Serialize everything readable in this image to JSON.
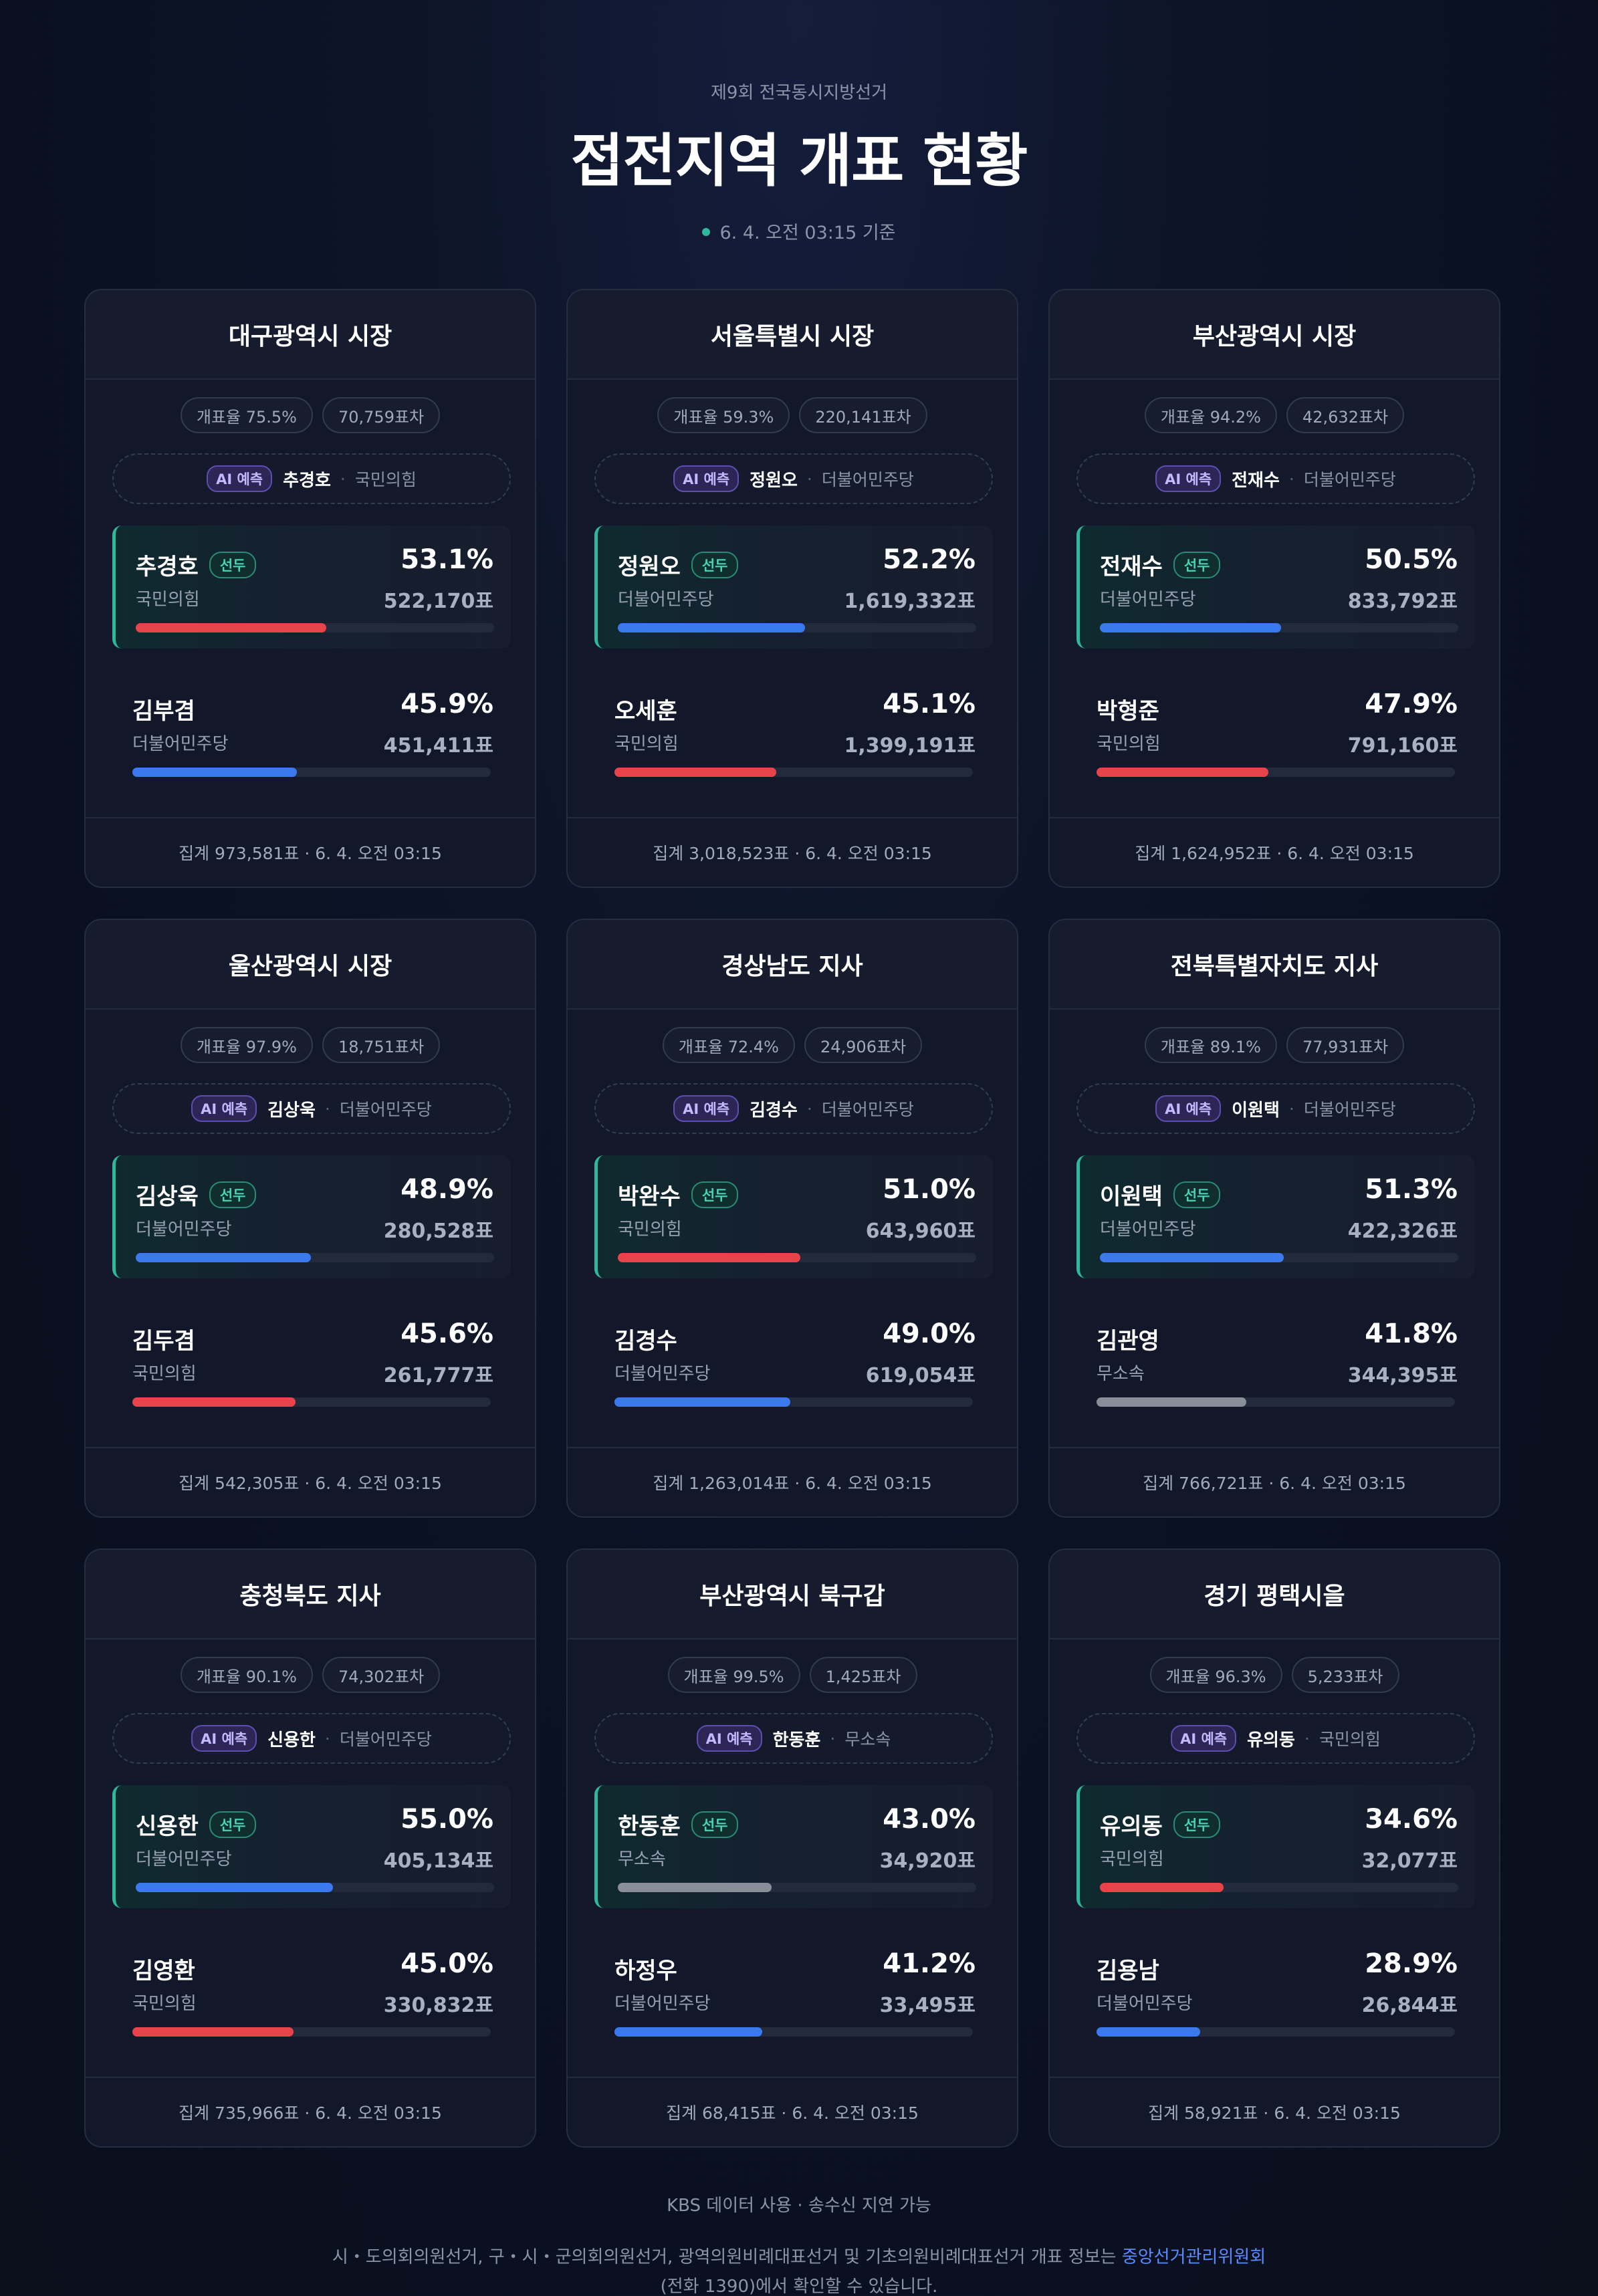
{
  "header": {
    "subtitle": "제9회 전국동시지방선거",
    "title": "접전지역 개표 현황",
    "timestamp": "6. 4. 오전 03:15 기준"
  },
  "labels": {
    "ai": "AI 예측",
    "lead": "선두"
  },
  "colors": {
    "국민의힘": "#e8434b",
    "더불어민주당": "#3c79ef",
    "무소속": "#8a8e98",
    "accent": "#2fb89b"
  },
  "cards": [
    {
      "title": "대구광역시 시장",
      "rate": "개표율 75.5%",
      "gap": "70,759표차",
      "ai_name": "추경호",
      "ai_party": "국민의힘",
      "lead": {
        "name": "추경호",
        "party": "국민의힘",
        "pct": "53.1%",
        "votes": "522,170표",
        "share": 0.531
      },
      "second": {
        "name": "김부겸",
        "party": "더불어민주당",
        "pct": "45.9%",
        "votes": "451,411표",
        "share": 0.459
      },
      "total": "집계 973,581표 · 6. 4. 오전 03:15"
    },
    {
      "title": "서울특별시 시장",
      "rate": "개표율 59.3%",
      "gap": "220,141표차",
      "ai_name": "정원오",
      "ai_party": "더불어민주당",
      "lead": {
        "name": "정원오",
        "party": "더불어민주당",
        "pct": "52.2%",
        "votes": "1,619,332표",
        "share": 0.522
      },
      "second": {
        "name": "오세훈",
        "party": "국민의힘",
        "pct": "45.1%",
        "votes": "1,399,191표",
        "share": 0.451
      },
      "total": "집계 3,018,523표 · 6. 4. 오전 03:15"
    },
    {
      "title": "부산광역시 시장",
      "rate": "개표율 94.2%",
      "gap": "42,632표차",
      "ai_name": "전재수",
      "ai_party": "더불어민주당",
      "lead": {
        "name": "전재수",
        "party": "더불어민주당",
        "pct": "50.5%",
        "votes": "833,792표",
        "share": 0.505
      },
      "second": {
        "name": "박형준",
        "party": "국민의힘",
        "pct": "47.9%",
        "votes": "791,160표",
        "share": 0.479
      },
      "total": "집계 1,624,952표 · 6. 4. 오전 03:15"
    },
    {
      "title": "울산광역시 시장",
      "rate": "개표율 97.9%",
      "gap": "18,751표차",
      "ai_name": "김상욱",
      "ai_party": "더불어민주당",
      "lead": {
        "name": "김상욱",
        "party": "더불어민주당",
        "pct": "48.9%",
        "votes": "280,528표",
        "share": 0.489
      },
      "second": {
        "name": "김두겸",
        "party": "국민의힘",
        "pct": "45.6%",
        "votes": "261,777표",
        "share": 0.456
      },
      "total": "집계 542,305표 · 6. 4. 오전 03:15"
    },
    {
      "title": "경상남도 지사",
      "rate": "개표율 72.4%",
      "gap": "24,906표차",
      "ai_name": "김경수",
      "ai_party": "더불어민주당",
      "lead": {
        "name": "박완수",
        "party": "국민의힘",
        "pct": "51.0%",
        "votes": "643,960표",
        "share": 0.51
      },
      "second": {
        "name": "김경수",
        "party": "더불어민주당",
        "pct": "49.0%",
        "votes": "619,054표",
        "share": 0.49
      },
      "total": "집계 1,263,014표 · 6. 4. 오전 03:15"
    },
    {
      "title": "전북특별자치도 지사",
      "rate": "개표율 89.1%",
      "gap": "77,931표차",
      "ai_name": "이원택",
      "ai_party": "더불어민주당",
      "lead": {
        "name": "이원택",
        "party": "더불어민주당",
        "pct": "51.3%",
        "votes": "422,326표",
        "share": 0.513
      },
      "second": {
        "name": "김관영",
        "party": "무소속",
        "pct": "41.8%",
        "votes": "344,395표",
        "share": 0.418
      },
      "total": "집계 766,721표 · 6. 4. 오전 03:15"
    },
    {
      "title": "충청북도 지사",
      "rate": "개표율 90.1%",
      "gap": "74,302표차",
      "ai_name": "신용한",
      "ai_party": "더불어민주당",
      "lead": {
        "name": "신용한",
        "party": "더불어민주당",
        "pct": "55.0%",
        "votes": "405,134표",
        "share": 0.55
      },
      "second": {
        "name": "김영환",
        "party": "국민의힘",
        "pct": "45.0%",
        "votes": "330,832표",
        "share": 0.45
      },
      "total": "집계 735,966표 · 6. 4. 오전 03:15"
    },
    {
      "title": "부산광역시 북구갑",
      "rate": "개표율 99.5%",
      "gap": "1,425표차",
      "ai_name": "한동훈",
      "ai_party": "무소속",
      "lead": {
        "name": "한동훈",
        "party": "무소속",
        "pct": "43.0%",
        "votes": "34,920표",
        "share": 0.43
      },
      "second": {
        "name": "하정우",
        "party": "더불어민주당",
        "pct": "41.2%",
        "votes": "33,495표",
        "share": 0.412
      },
      "total": "집계 68,415표 · 6. 4. 오전 03:15"
    },
    {
      "title": "경기 평택시을",
      "rate": "개표율 96.3%",
      "gap": "5,233표차",
      "ai_name": "유의동",
      "ai_party": "국민의힘",
      "lead": {
        "name": "유의동",
        "party": "국민의힘",
        "pct": "34.6%",
        "votes": "32,077표",
        "share": 0.346
      },
      "second": {
        "name": "김용남",
        "party": "더불어민주당",
        "pct": "28.9%",
        "votes": "26,844표",
        "share": 0.289
      },
      "total": "집계 58,921표 · 6. 4. 오전 03:15"
    }
  ],
  "footer": {
    "source": "KBS 데이터 사용 · 송수신 지연 가능",
    "note_prefix": "시・도의회의원선거, 구・시・군의회의원선거, 광역의원비례대표선거 및 기초의원비례대표선거 개표 정보는 ",
    "note_link": "중앙선거관리위원회",
    "note_suffix": "(전화 1390)에서 확인할 수 있습니다."
  }
}
